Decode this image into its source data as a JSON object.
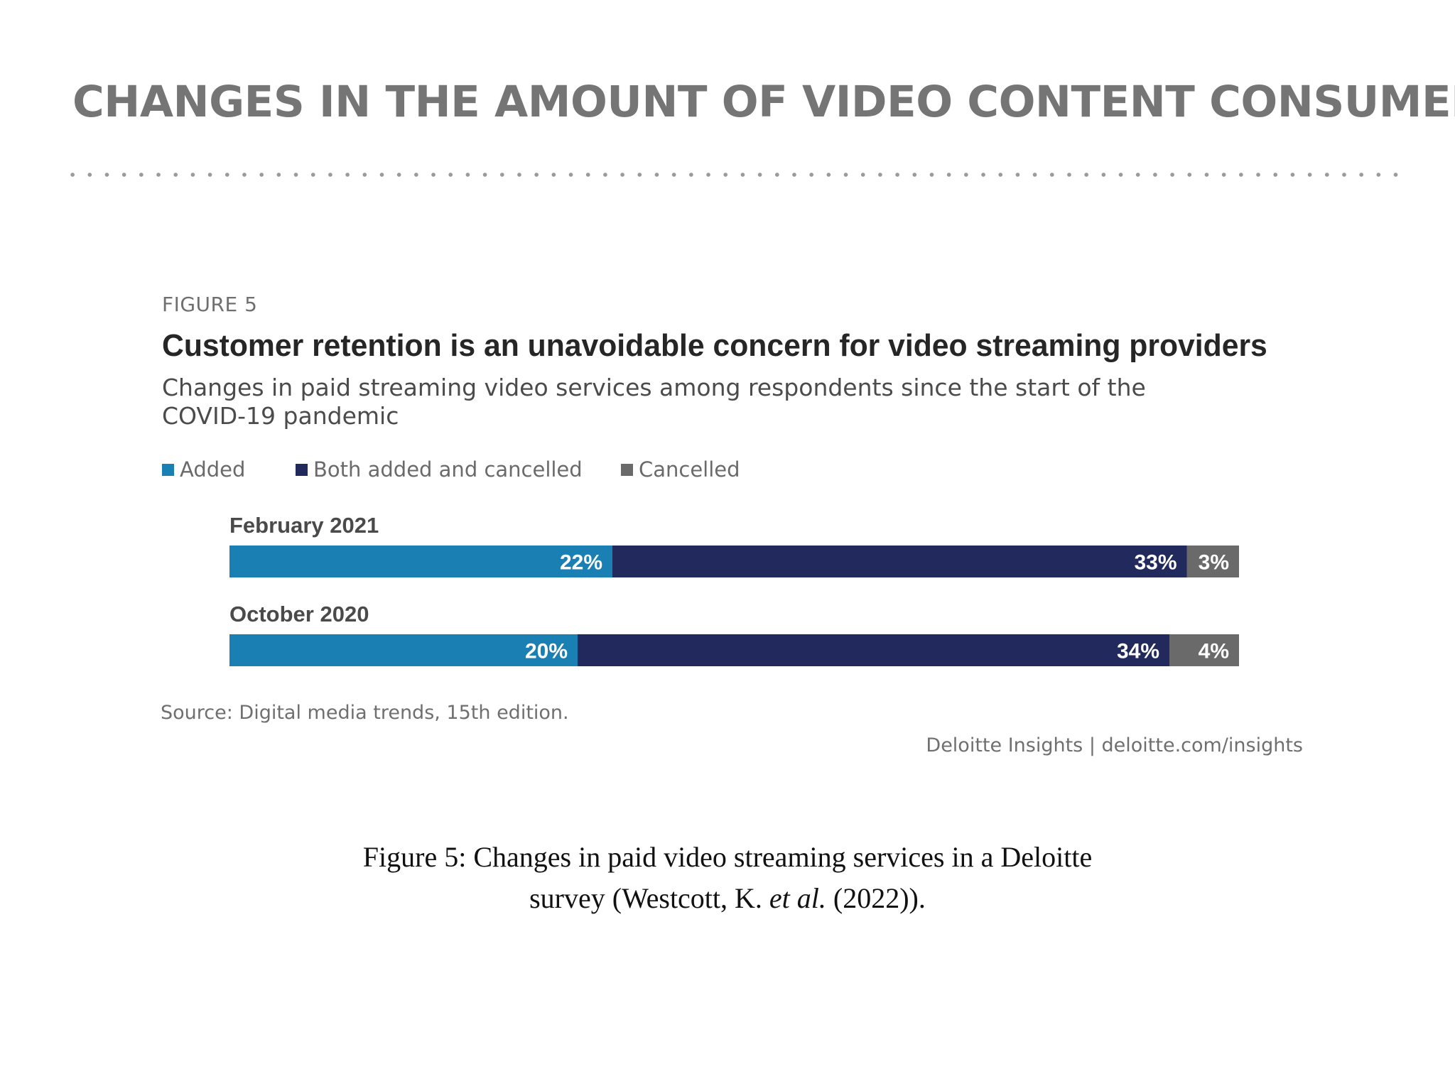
{
  "slide": {
    "title": "CHANGES IN THE AMOUNT OF VIDEO CONTENT CONSUMED"
  },
  "figure": {
    "label": "FIGURE 5",
    "source": "Source: Digital media trends, 15th edition.",
    "credit": "Deloitte Insights | deloitte.com/insights"
  },
  "caption": {
    "line1": "Figure 5: Changes in paid video streaming services in a Deloitte",
    "line2_pre": "survey (Westcott, K. ",
    "line2_em": "et al.",
    "line2_post": " (2022))."
  },
  "colors": {
    "added": "#1a7fb3",
    "both": "#22295d",
    "cancelled": "#6a6a6a",
    "label_text": "#ffffff",
    "category_text": "#4a4a4a"
  },
  "chart_data": {
    "type": "bar",
    "orientation": "horizontal",
    "stacked": true,
    "title": "Customer retention is an unavoidable concern for video streaming providers",
    "subtitle": "Changes in paid streaming video services among respondents since the start of the COVID-19 pandemic",
    "unit": "%",
    "categories": [
      "February 2021",
      "October 2020"
    ],
    "series": [
      {
        "key": "added",
        "name": "Added",
        "values": [
          22,
          20
        ],
        "labels": [
          "22%",
          "20%"
        ]
      },
      {
        "key": "both",
        "name": "Both added and cancelled",
        "values": [
          33,
          34
        ],
        "labels": [
          "33%",
          "34%"
        ]
      },
      {
        "key": "cancelled",
        "name": "Cancelled",
        "values": [
          3,
          4
        ],
        "labels": [
          "3%",
          "4%"
        ]
      }
    ],
    "legend_position": "top-left",
    "axes_visible": false,
    "grid": false
  }
}
